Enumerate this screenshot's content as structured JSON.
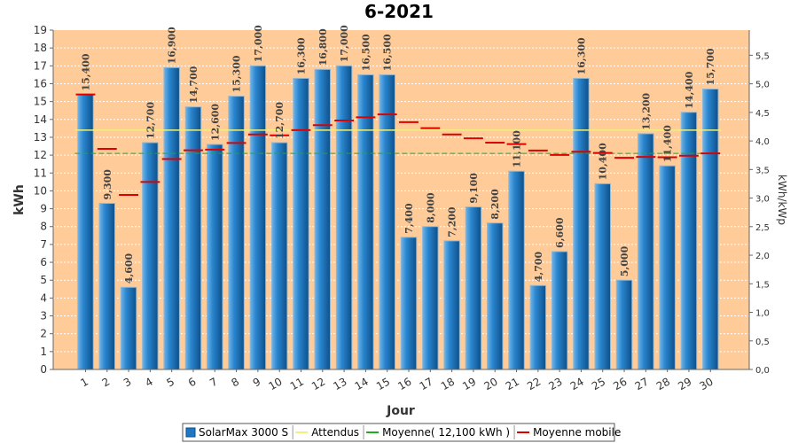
{
  "chart_data": {
    "type": "bar",
    "title": "6-2021",
    "xlabel": "Jour",
    "ylabel": "kWh",
    "y2label": "kWh/kWp",
    "ylim": [
      0,
      19
    ],
    "y2lim": [
      0,
      5.94
    ],
    "y2_ticks": [
      "0,0",
      "0,5",
      "1,0",
      "1,5",
      "2,0",
      "2,5",
      "3,0",
      "3,5",
      "4,0",
      "4,5",
      "5,0",
      "5,5"
    ],
    "categories": [
      "1",
      "2",
      "3",
      "4",
      "5",
      "6",
      "7",
      "8",
      "9",
      "10",
      "11",
      "12",
      "13",
      "14",
      "15",
      "16",
      "17",
      "18",
      "19",
      "20",
      "21",
      "22",
      "23",
      "24",
      "25",
      "26",
      "27",
      "28",
      "29",
      "30"
    ],
    "series": [
      {
        "name": "SolarMax 3000 S",
        "type": "bar",
        "color": "#1f77c4",
        "values": [
          15.4,
          9.3,
          4.6,
          12.7,
          16.9,
          14.7,
          12.6,
          15.3,
          17.0,
          12.7,
          16.3,
          16.8,
          17.0,
          16.5,
          16.5,
          7.4,
          8.0,
          7.2,
          9.1,
          8.2,
          11.1,
          4.7,
          6.6,
          16.3,
          10.4,
          5.0,
          13.2,
          11.4,
          14.4,
          15.7
        ],
        "labels": [
          "15,400",
          "9,300",
          "4,600",
          "12,700",
          "16,900",
          "14,700",
          "12,600",
          "15,300",
          "17,000",
          "12,700",
          "16,300",
          "16,800",
          "17,000",
          "16,500",
          "16,500",
          "7,400",
          "8,000",
          "7,200",
          "9,100",
          "8,200",
          "11,100",
          "4,700",
          "6,600",
          "16,300",
          "10,400",
          "5,000",
          "13,200",
          "11,400",
          "14,400",
          "15,700"
        ]
      },
      {
        "name": "Attendus",
        "type": "line",
        "color": "#f0f07a",
        "value": 13.4
      },
      {
        "name": "Moyenne( 12,100 kWh )",
        "type": "line",
        "color": "#22aa22",
        "value": 12.1
      },
      {
        "name": "Moyenne mobile",
        "type": "step",
        "color": "#dd0000",
        "values": [
          15.4,
          12.35,
          9.77,
          10.5,
          11.78,
          12.27,
          12.31,
          12.68,
          13.16,
          13.11,
          13.4,
          13.68,
          13.94,
          14.12,
          14.28,
          13.85,
          13.51,
          13.16,
          12.94,
          12.7,
          12.62,
          12.26,
          12.01,
          12.19,
          12.12,
          11.85,
          11.9,
          11.88,
          11.97,
          12.1
        ]
      }
    ],
    "legend_position": "bottom",
    "grid": true,
    "colors": {
      "plot_background": "#ffcc99",
      "gridline": "#ffffff",
      "axis": "#666666"
    }
  }
}
